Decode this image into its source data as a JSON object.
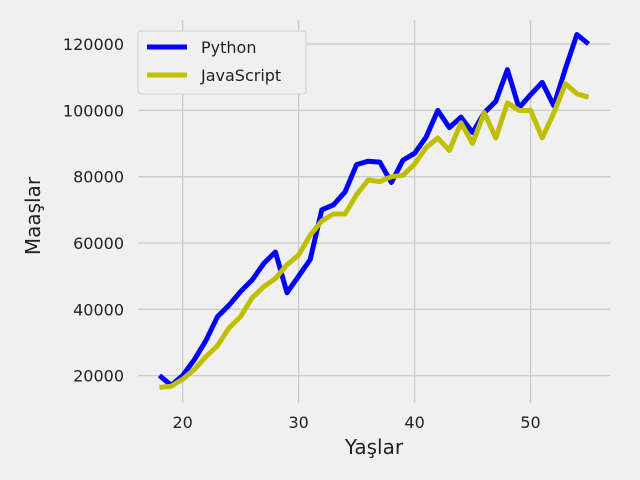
{
  "chart_data": {
    "type": "line",
    "title": "",
    "xlabel": "Yaşlar",
    "ylabel": "Maaşlar",
    "xlim": [
      16.15,
      56.85
    ],
    "ylim": [
      11750,
      127250
    ],
    "xticks": [
      20,
      30,
      40,
      50
    ],
    "yticks": [
      20000,
      40000,
      60000,
      80000,
      100000,
      120000
    ],
    "xtick_labels": [
      "20",
      "30",
      "40",
      "50"
    ],
    "ytick_labels": [
      "20000",
      "40000",
      "60000",
      "80000",
      "100000",
      "120000"
    ],
    "grid": true,
    "legend_position": "top-left",
    "x": [
      18,
      19,
      20,
      21,
      22,
      23,
      24,
      25,
      26,
      27,
      28,
      29,
      30,
      31,
      32,
      33,
      34,
      35,
      36,
      37,
      38,
      39,
      40,
      41,
      42,
      43,
      44,
      45,
      46,
      47,
      48,
      49,
      50,
      51,
      52,
      53,
      54,
      55
    ],
    "series": [
      {
        "name": "Python",
        "color": "#0000ff",
        "values": [
          20046,
          17100,
          20000,
          24744,
          30500,
          37732,
          41247,
          45372,
          48876,
          53850,
          57287,
          45000,
          50000,
          55000,
          70000,
          71496,
          75370,
          83640,
          84666,
          84392,
          78254,
          85000,
          87038,
          91991,
          100000,
          94796,
          97962,
          93302,
          99240,
          102736,
          112285,
          100771,
          104708,
          108423,
          101407,
          112542,
          122870,
          120000
        ]
      },
      {
        "name": "JavaScript",
        "color": "#bfbf00",
        "values": [
          16446,
          16791,
          18942,
          21780,
          25704,
          29000,
          34372,
          37810,
          43515,
          46823,
          49293,
          53437,
          56373,
          62375,
          66674,
          68745,
          68746,
          74583,
          79000,
          78508,
          79996,
          80403,
          83820,
          88833,
          91660,
          87892,
          96243,
          90000,
          99313,
          91660,
          102264,
          100000,
          100000,
          91660,
          99240,
          108000,
          105000,
          104000
        ]
      }
    ]
  }
}
